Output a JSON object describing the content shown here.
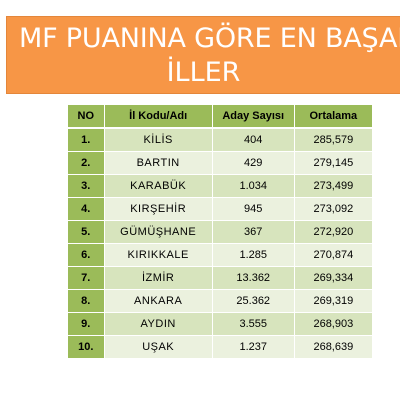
{
  "title": {
    "line1": "MF PUANINA GÖRE EN BAŞARILI",
    "line2": "İLLER"
  },
  "table": {
    "headers": [
      "NO",
      "İl Kodu/Adı",
      "Aday Sayısı",
      "Ortalama"
    ],
    "rows": [
      {
        "no": "1.",
        "il": "KİLİS",
        "aday": "404",
        "ortalama": "285,579"
      },
      {
        "no": "2.",
        "il": "BARTIN",
        "aday": "429",
        "ortalama": "279,145"
      },
      {
        "no": "3.",
        "il": "KARABÜK",
        "aday": "1.034",
        "ortalama": "273,499"
      },
      {
        "no": "4.",
        "il": "KIRŞEHİR",
        "aday": "945",
        "ortalama": "273,092"
      },
      {
        "no": "5.",
        "il": "GÜMÜŞHANE",
        "aday": "367",
        "ortalama": "272,920"
      },
      {
        "no": "6.",
        "il": "KIRIKKALE",
        "aday": "1.285",
        "ortalama": "270,874"
      },
      {
        "no": "7.",
        "il": "İZMİR",
        "aday": "13.362",
        "ortalama": "269,334"
      },
      {
        "no": "8.",
        "il": "ANKARA",
        "aday": "25.362",
        "ortalama": "269,319"
      },
      {
        "no": "9.",
        "il": "AYDIN",
        "aday": "3.555",
        "ortalama": "268,903"
      },
      {
        "no": "10.",
        "il": "UŞAK",
        "aday": "1.237",
        "ortalama": "268,639"
      }
    ]
  },
  "colors": {
    "banner": "#f79646",
    "header": "#9bbb59",
    "row_odd": "#d7e4bd",
    "row_even": "#ebf1de"
  }
}
